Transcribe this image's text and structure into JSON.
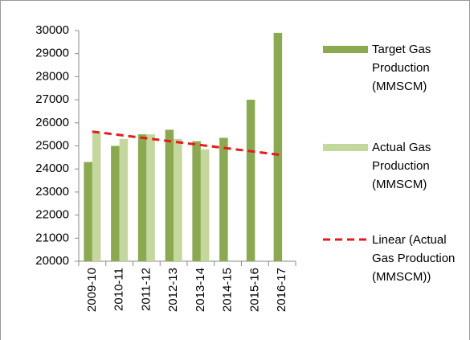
{
  "chart_data": {
    "type": "bar",
    "categories": [
      "2009-10",
      "2010-11",
      "2011-12",
      "2012-13",
      "2013-14",
      "2014-15",
      "2015-16",
      "2016-17"
    ],
    "series": [
      {
        "name": "Target Gas Production (MMSCM)",
        "color": "#8ba94f",
        "values": [
          24300,
          25000,
          25500,
          25700,
          25200,
          25350,
          27000,
          29900
        ]
      },
      {
        "name": "Actual Gas Production (MMSCM)",
        "color": "#c4d79d",
        "values": [
          25600,
          25300,
          25500,
          25300,
          24850,
          null,
          null,
          null
        ]
      },
      {
        "name": "Linear (Actual Gas Production (MMSCM))",
        "color": "#e8191c",
        "type": "line",
        "dashed": true,
        "values": [
          25620,
          25474,
          25329,
          25183,
          25037,
          24891,
          24746,
          24600
        ]
      }
    ],
    "ylim": [
      20000,
      30000
    ],
    "yticks": [
      20000,
      21000,
      22000,
      23000,
      24000,
      25000,
      26000,
      27000,
      28000,
      29000,
      30000
    ],
    "grid": false,
    "legend": "right"
  }
}
